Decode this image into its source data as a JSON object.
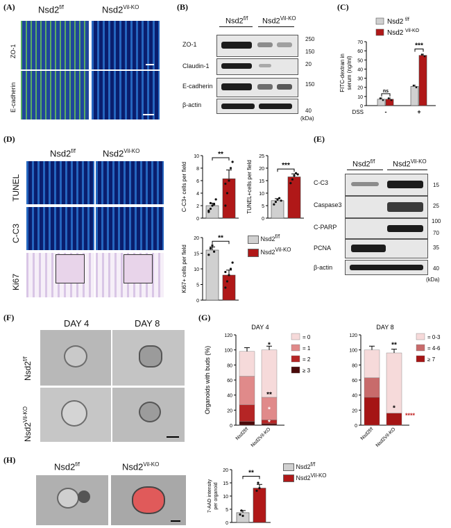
{
  "panels": {
    "A": {
      "label": "(A)",
      "col1": "Nsd2",
      "col1_sup": "f/f",
      "col2": "Nsd2",
      "col2_sup": "Vil-KO",
      "rows": [
        "ZO-1",
        "E-cadherin"
      ]
    },
    "B": {
      "label": "(B)",
      "col1": "Nsd2",
      "col1_sup": "f/f",
      "col2": "Nsd2",
      "col2_sup": "Vil-KO",
      "rows": [
        "ZO-1",
        "Claudin-1",
        "E-cadherin",
        "β-actin"
      ],
      "markers": [
        "250",
        "150",
        "20",
        "150",
        "40"
      ],
      "unit": "(kDa)"
    },
    "C": {
      "label": "(C)",
      "legend": [
        {
          "name": "Nsd2",
          "sup": "f/f",
          "color": "#d0d0d0"
        },
        {
          "name": "Nsd2",
          "sup": "Vil-KO",
          "color": "#b01818"
        }
      ],
      "ylabel_line1": "FITC-dextran in",
      "ylabel_line2": "serum (ng/ml)",
      "dss_label": "DSS",
      "dss_values": [
        "-",
        "+"
      ],
      "sig": [
        "ns",
        "***"
      ]
    },
    "D": {
      "label": "(D)",
      "col1": "Nsd2",
      "col1_sup": "f/f",
      "col2": "Nsd2",
      "col2_sup": "Vil-KO",
      "rows": [
        "TUNEL",
        "C-C3",
        "Ki67"
      ],
      "legend": [
        {
          "name": "Nsd2",
          "sup": "f/f",
          "color": "#d0d0d0"
        },
        {
          "name": "Nsd2",
          "sup": "Vil-KO",
          "color": "#b01818"
        }
      ]
    },
    "E": {
      "label": "(E)",
      "col1": "Nsd2",
      "col1_sup": "f/f",
      "col2": "Nsd2",
      "col2_sup": "Vil-KO",
      "rows": [
        "C-C3",
        "Caspase3",
        "C-PARP",
        "PCNA",
        "β-actin"
      ],
      "markers": [
        "15",
        "25",
        "100",
        "70",
        "35",
        "40"
      ],
      "unit": "(kDa)"
    },
    "F": {
      "label": "(F)",
      "cols": [
        "DAY 4",
        "DAY 8"
      ],
      "row1": "Nsd2",
      "row1_sup": "f/f",
      "row2": "Nsd2",
      "row2_sup": "Vil-KO"
    },
    "G": {
      "label": "(G)",
      "ylabel": "Organoids with buds (%)",
      "day4_title": "DAY 4",
      "day8_title": "DAY 8",
      "day4_legend": [
        "= 0",
        "= 1",
        "= 2",
        "≥ 3"
      ],
      "day8_legend": [
        "= 0-3",
        "= 4-6",
        "≥ 7"
      ],
      "legend_colors_day4": [
        "#f6dada",
        "#e08a8a",
        "#b52525",
        "#4a0a0a"
      ],
      "legend_colors_day8": [
        "#f6dada",
        "#c86b6b",
        "#a51515"
      ],
      "xticks": [
        "Nsd2",
        "Nsd2"
      ],
      "xtick_sups": [
        "f/f",
        "Vil-KO"
      ],
      "stars": "****"
    },
    "H": {
      "label": "(H)",
      "col1": "Nsd2",
      "col1_sup": "f/f",
      "col2": "Nsd2",
      "col2_sup": "Vil-KO",
      "legend": [
        {
          "name": "Nsd2",
          "sup": "f/f",
          "color": "#d0d0d0"
        },
        {
          "name": "Nsd2",
          "sup": "Vil-KO",
          "color": "#b01818"
        }
      ],
      "ylabel_line1": "7-AAD intensity",
      "ylabel_line2": "per organoid",
      "sig": "**"
    }
  },
  "chart_data": [
    {
      "id": "C",
      "type": "bar",
      "categories": [
        "-",
        "+"
      ],
      "series": [
        {
          "name": "Nsd2 f/f",
          "values": [
            7,
            21
          ]
        },
        {
          "name": "Nsd2 Vil-KO",
          "values": [
            7,
            55
          ]
        }
      ],
      "ylabel": "FITC-dextran in serum (ng/ml)",
      "xlabel": "DSS",
      "ylim": [
        0,
        70
      ],
      "yticks": [
        0,
        10,
        20,
        30,
        40,
        50,
        60,
        70
      ],
      "annotations": [
        "ns",
        "***"
      ]
    },
    {
      "id": "D1",
      "type": "bar",
      "categories": [
        "Nsd2 f/f",
        "Nsd2 Vil-KO"
      ],
      "values": [
        2.0,
        6.3
      ],
      "errors": [
        0.4,
        1.4
      ],
      "points": [
        [
          1,
          1.5,
          2,
          2.2,
          3,
          1.2,
          2.4
        ],
        [
          2,
          4,
          6,
          8,
          9,
          5.5
        ]
      ],
      "ylabel": "C-C3+ cells per field",
      "ylim": [
        0,
        10
      ],
      "yticks": [
        0,
        2,
        4,
        6,
        8,
        10
      ],
      "annotations": [
        "**"
      ]
    },
    {
      "id": "D2",
      "type": "bar",
      "categories": [
        "Nsd2 f/f",
        "Nsd2 Vil-KO"
      ],
      "values": [
        7,
        16.5
      ],
      "errors": [
        0.8,
        1.2
      ],
      "points": [
        [
          5.5,
          6.5,
          7.5,
          8,
          7
        ],
        [
          14,
          15.5,
          17,
          18,
          17.5
        ]
      ],
      "ylabel": "TUNEL+cells per field",
      "ylim": [
        0,
        25
      ],
      "yticks": [
        0,
        5,
        10,
        15,
        20,
        25
      ],
      "annotations": [
        "***"
      ]
    },
    {
      "id": "D3",
      "type": "bar",
      "categories": [
        "Nsd2 f/f",
        "Nsd2 Vil-KO"
      ],
      "values": [
        16,
        8
      ],
      "errors": [
        1,
        1.6
      ],
      "points": [
        [
          14.5,
          16.5,
          17.5,
          15.5
        ],
        [
          4,
          6,
          8,
          10,
          12,
          9
        ]
      ],
      "ylabel": "Ki67+ cells per field",
      "ylim": [
        0,
        20
      ],
      "yticks": [
        0,
        5,
        10,
        15,
        20
      ],
      "annotations": [
        "**"
      ]
    },
    {
      "id": "G_day4",
      "type": "bar",
      "categories": [
        "Nsd2 f/f",
        "Nsd2 Vil-KO"
      ],
      "series": [
        {
          "name": "≥ 3",
          "values": [
            5,
            2
          ]
        },
        {
          "name": "= 2",
          "values": [
            22,
            5
          ]
        },
        {
          "name": "= 1",
          "values": [
            38,
            30
          ]
        },
        {
          "name": "= 0",
          "values": [
            33,
            63
          ]
        }
      ],
      "ylabel": "Organoids with buds (%)",
      "ylim": [
        0,
        120
      ],
      "yticks": [
        0,
        20,
        40,
        60,
        80,
        100,
        120
      ],
      "annotations": [
        "*",
        "**",
        "*",
        "*"
      ]
    },
    {
      "id": "G_day8",
      "type": "bar",
      "categories": [
        "Nsd2 f/f",
        "Nsd2 Vil-KO"
      ],
      "series": [
        {
          "name": "≥ 7",
          "values": [
            37,
            16
          ]
        },
        {
          "name": "= 4-6",
          "values": [
            26,
            0
          ]
        },
        {
          "name": "= 0-3",
          "values": [
            37,
            80
          ]
        }
      ],
      "ylabel": "Organoids with buds (%)",
      "ylim": [
        0,
        120
      ],
      "yticks": [
        0,
        20,
        40,
        60,
        80,
        100,
        120
      ],
      "annotations": [
        "**",
        "*",
        "****"
      ]
    },
    {
      "id": "H",
      "type": "bar",
      "categories": [
        "Nsd2 f/f",
        "Nsd2 Vil-KO"
      ],
      "values": [
        3.7,
        13
      ],
      "errors": [
        0.8,
        1.4
      ],
      "points": [
        [
          3,
          4.5,
          2.5
        ],
        [
          12,
          15,
          13
        ]
      ],
      "ylabel": "7-AAD intensity per organoid",
      "ylim": [
        0,
        20
      ],
      "yticks": [
        0,
        5,
        10,
        15,
        20
      ],
      "annotations": [
        "**"
      ]
    }
  ]
}
